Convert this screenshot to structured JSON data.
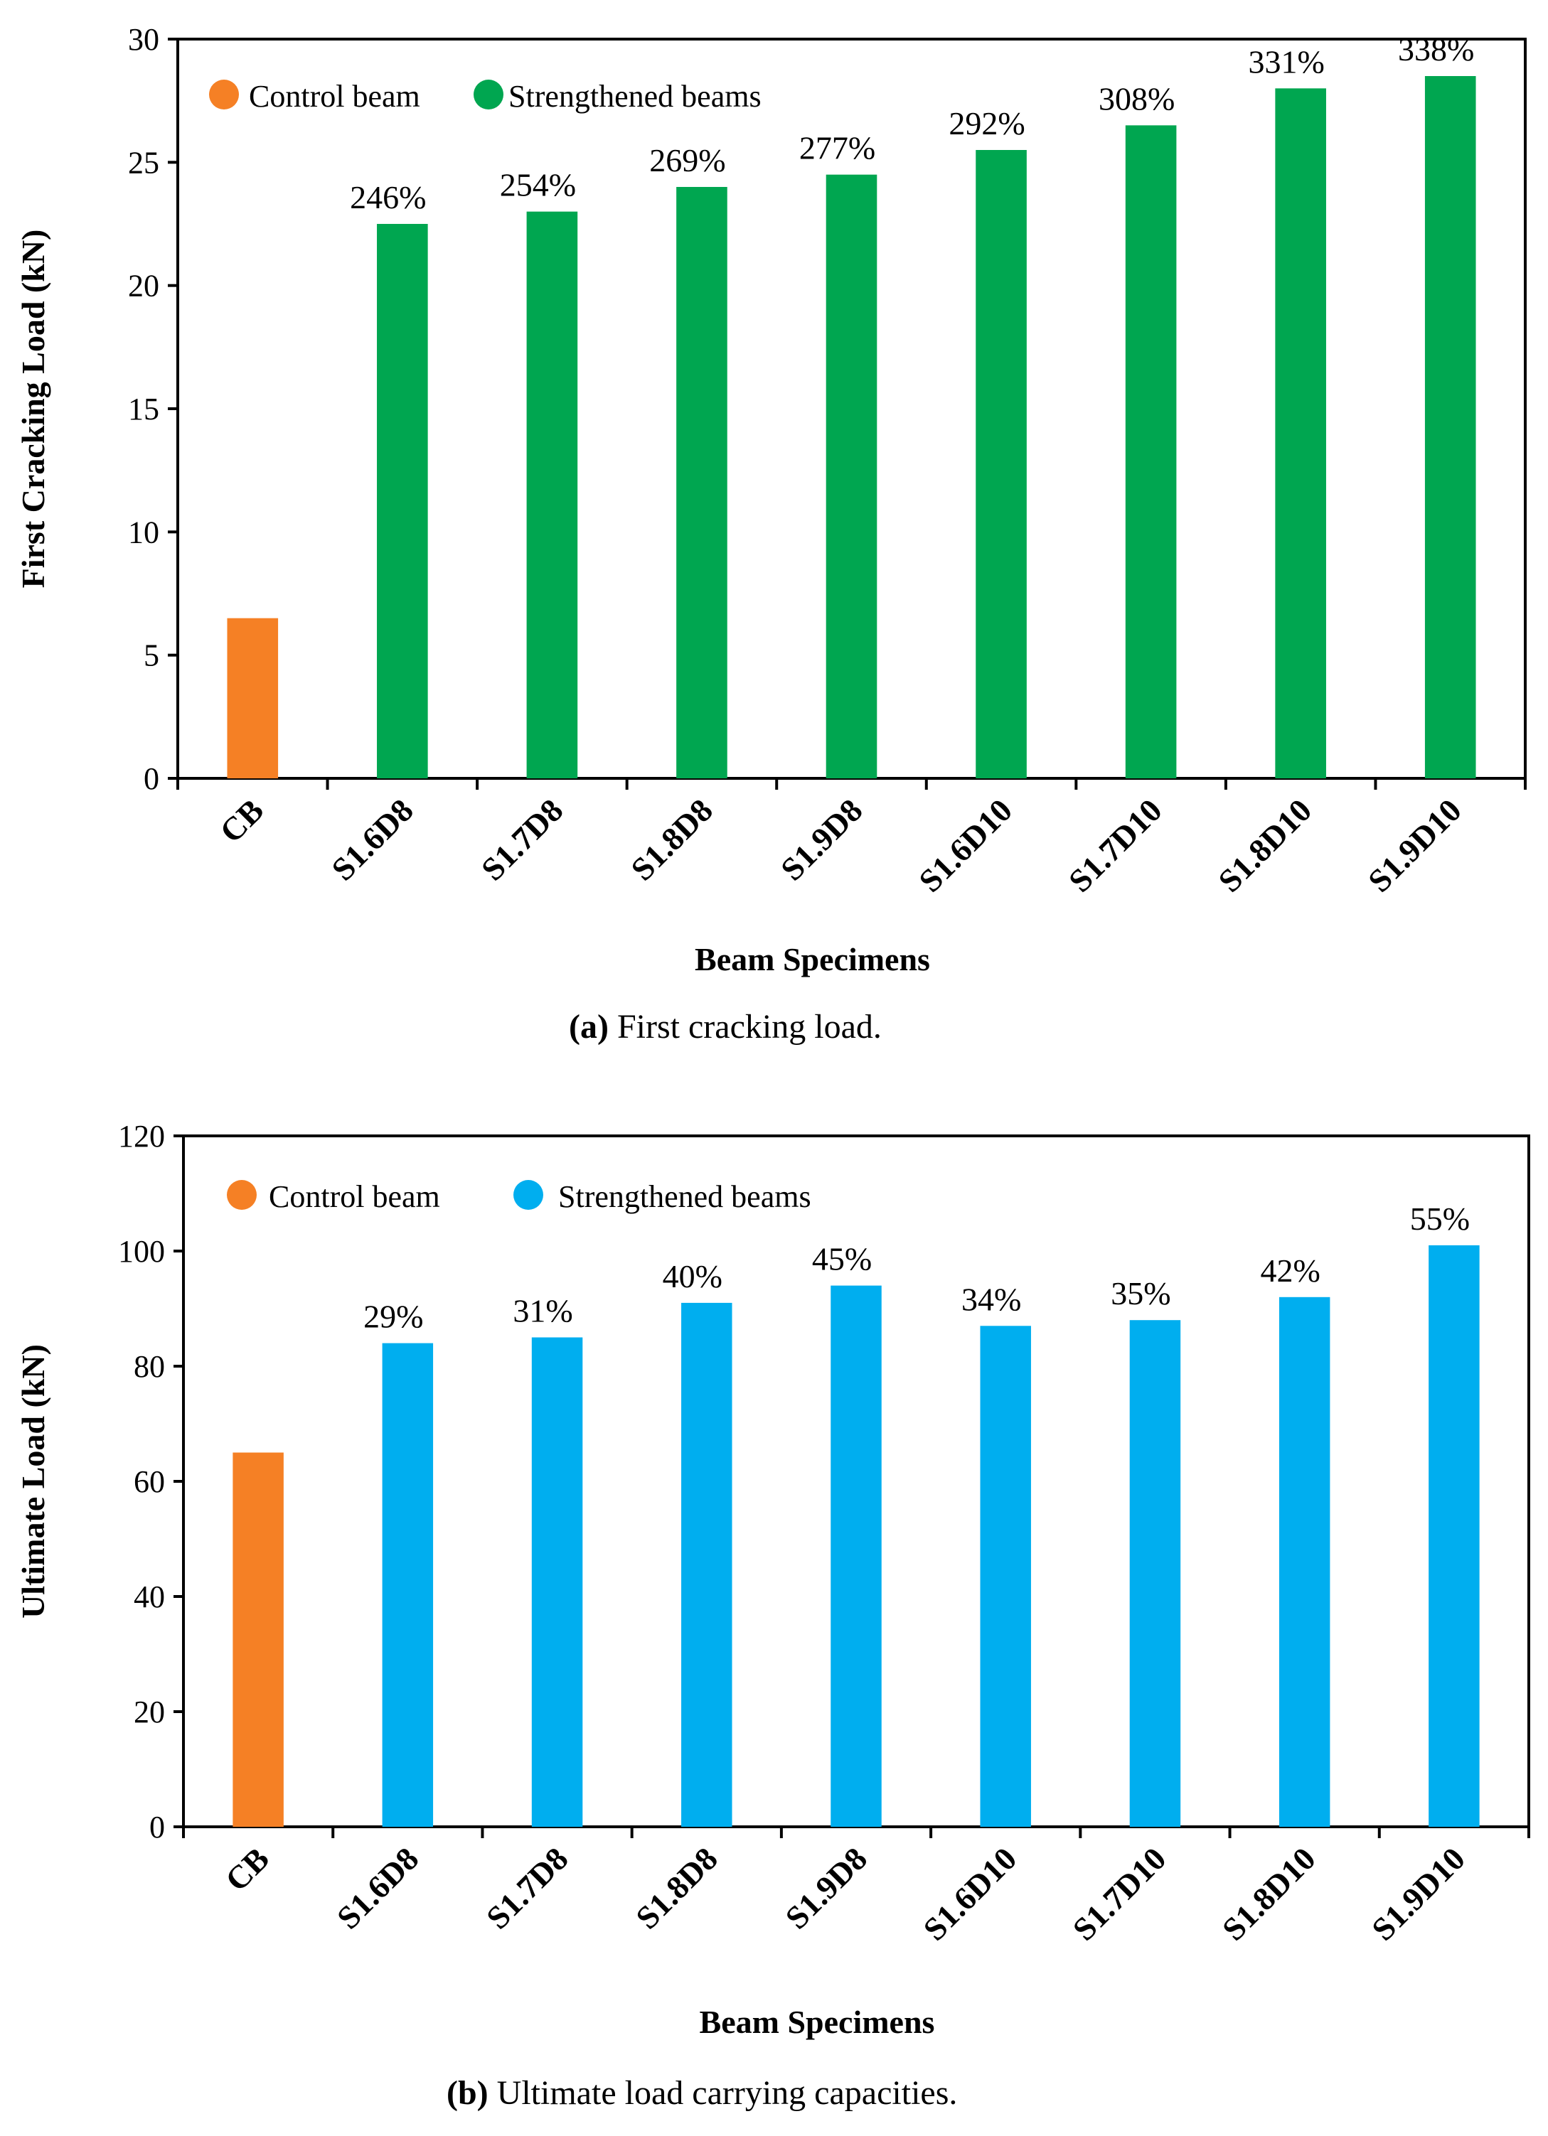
{
  "chart_data": [
    {
      "type": "bar",
      "title": "",
      "caption_tag": "(a)",
      "caption_text": " First cracking load.",
      "xlabel": "Beam Specimens",
      "ylabel": "First Cracking Load (kN)",
      "ylim": [
        0,
        30
      ],
      "yticks": [
        0,
        5,
        10,
        15,
        20,
        25,
        30
      ],
      "categories": [
        "CB",
        "S1.6D8",
        "S1.7D8",
        "S1.8D8",
        "S1.9D8",
        "S1.6D10",
        "S1.7D10",
        "S1.8D10",
        "S1.9D10"
      ],
      "values": [
        6.5,
        22.5,
        23.0,
        24.0,
        24.5,
        25.5,
        26.5,
        28.0,
        28.5
      ],
      "labels": [
        "",
        "246%",
        "254%",
        "269%",
        "277%",
        "292%",
        "308%",
        "331%",
        "338%"
      ],
      "series_index": [
        0,
        1,
        1,
        1,
        1,
        1,
        1,
        1,
        1
      ],
      "legend": [
        {
          "name": "Control beam",
          "color": "#f58025"
        },
        {
          "name": "Strengthened beams",
          "color": "#00a650"
        }
      ],
      "legend_position": "top-left",
      "grid": false
    },
    {
      "type": "bar",
      "title": "",
      "caption_tag": "(b)",
      "caption_text": " Ultimate load carrying capacities.",
      "xlabel": "Beam Specimens",
      "ylabel": "Ultimate Load (kN)",
      "ylim": [
        0,
        120
      ],
      "yticks": [
        0,
        20,
        40,
        60,
        80,
        100,
        120
      ],
      "categories": [
        "CB",
        "S1.6D8",
        "S1.7D8",
        "S1.8D8",
        "S1.9D8",
        "S1.6D10",
        "S1.7D10",
        "S1.8D10",
        "S1.9D10"
      ],
      "values": [
        65,
        84,
        85,
        91,
        94,
        87,
        88,
        92,
        101
      ],
      "labels": [
        "",
        "29%",
        "31%",
        "40%",
        "45%",
        "34%",
        "35%",
        "42%",
        "55%"
      ],
      "series_index": [
        0,
        1,
        1,
        1,
        1,
        1,
        1,
        1,
        1
      ],
      "legend": [
        {
          "name": "Control beam",
          "color": "#f58025"
        },
        {
          "name": "Strengthened beams",
          "color": "#00aeef"
        }
      ],
      "legend_position": "top-left",
      "grid": false
    }
  ]
}
